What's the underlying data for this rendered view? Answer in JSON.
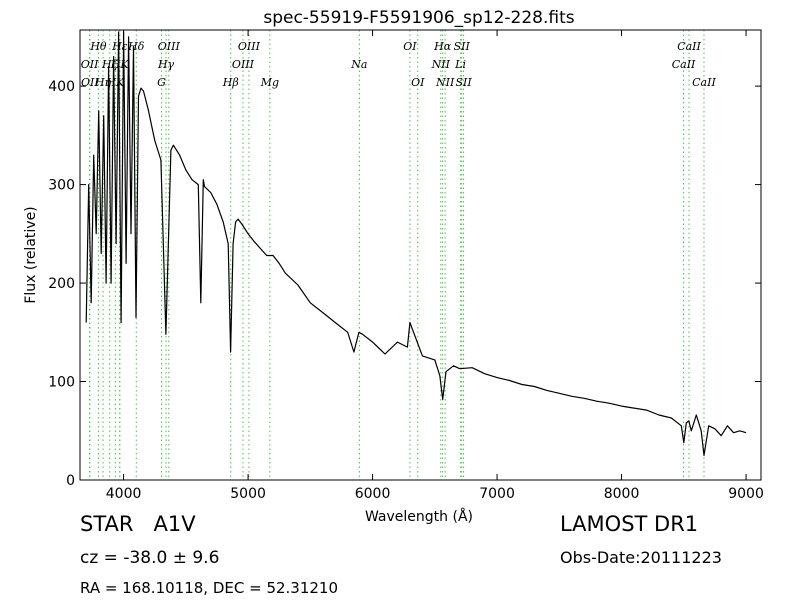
{
  "chart_data": {
    "type": "line",
    "title": "spec-55919-F5591906_sp12-228.fits",
    "xlabel": "Wavelength (Å)",
    "ylabel": "Flux (relative)",
    "xlim": [
      3650,
      9120
    ],
    "ylim": [
      0,
      457
    ],
    "xticks": [
      4000,
      5000,
      6000,
      7000,
      8000,
      9000
    ],
    "yticks": [
      0,
      100,
      200,
      300,
      400
    ],
    "grid": false,
    "series": [
      {
        "color": "#000000",
        "x": [
          3700,
          3720,
          3740,
          3760,
          3780,
          3800,
          3820,
          3840,
          3860,
          3880,
          3900,
          3920,
          3940,
          3960,
          3980,
          4000,
          4020,
          4040,
          4060,
          4080,
          4100,
          4120,
          4140,
          4160,
          4180,
          4200,
          4250,
          4300,
          4340,
          4380,
          4400,
          4450,
          4500,
          4550,
          4600,
          4620,
          4640,
          4650,
          4700,
          4750,
          4800,
          4840,
          4860,
          4880,
          4900,
          4920,
          4950,
          5000,
          5050,
          5100,
          5150,
          5200,
          5250,
          5300,
          5400,
          5500,
          5600,
          5700,
          5800,
          5850,
          5890,
          5920,
          6000,
          6100,
          6200,
          6280,
          6300,
          6400,
          6500,
          6540,
          6563,
          6590,
          6650,
          6700,
          6800,
          6900,
          7000,
          7100,
          7200,
          7300,
          7400,
          7500,
          7600,
          7700,
          7800,
          7900,
          8000,
          8100,
          8200,
          8300,
          8400,
          8480,
          8500,
          8520,
          8540,
          8560,
          8600,
          8640,
          8662,
          8700,
          8750,
          8800,
          8850,
          8900,
          8950,
          9000
        ],
        "y": [
          160,
          300,
          180,
          330,
          250,
          375,
          230,
          370,
          200,
          420,
          200,
          430,
          240,
          455,
          160,
          455,
          220,
          450,
          250,
          440,
          165,
          390,
          398,
          395,
          385,
          375,
          345,
          325,
          148,
          335,
          340,
          330,
          315,
          305,
          300,
          180,
          305,
          298,
          292,
          280,
          262,
          240,
          130,
          240,
          262,
          265,
          260,
          250,
          242,
          235,
          228,
          228,
          220,
          210,
          198,
          180,
          170,
          160,
          150,
          130,
          150,
          148,
          140,
          128,
          140,
          135,
          160,
          126,
          122,
          106,
          82,
          110,
          116,
          113,
          114,
          108,
          104,
          101,
          97,
          95,
          91,
          88,
          85,
          83,
          80,
          78,
          75,
          73,
          71,
          66,
          63,
          55,
          38,
          58,
          60,
          50,
          66,
          50,
          25,
          55,
          52,
          45,
          55,
          48,
          50,
          48
        ]
      }
    ],
    "lines": [
      {
        "label": "OII",
        "wl": 3727,
        "tier": 2
      },
      {
        "label": "OII",
        "wl": 3729,
        "tier": 3
      },
      {
        "label": "Hθ",
        "wl": 3798,
        "tier": 1
      },
      {
        "label": "Hη",
        "wl": 3835,
        "tier": 3
      },
      {
        "label": "Hζ",
        "wl": 3889,
        "tier": 2
      },
      {
        "label": "Hε",
        "wl": 3970,
        "tier": 1
      },
      {
        "label": "HK",
        "wl": 3934,
        "tier": 3
      },
      {
        "label": "HK",
        "wl": 3969,
        "tier": 2
      },
      {
        "label": "Hδ",
        "wl": 4102,
        "tier": 1
      },
      {
        "label": "G",
        "wl": 4305,
        "tier": 3
      },
      {
        "label": "Hγ",
        "wl": 4341,
        "tier": 2
      },
      {
        "label": "OIII",
        "wl": 4363,
        "tier": 1
      },
      {
        "label": "Hβ",
        "wl": 4861,
        "tier": 3
      },
      {
        "label": "OIII",
        "wl": 4959,
        "tier": 2
      },
      {
        "label": "OIII",
        "wl": 5007,
        "tier": 1
      },
      {
        "label": "Mg",
        "wl": 5175,
        "tier": 3
      },
      {
        "label": "Na",
        "wl": 5894,
        "tier": 2
      },
      {
        "label": "OI",
        "wl": 6300,
        "tier": 1
      },
      {
        "label": "OI",
        "wl": 6363,
        "tier": 3
      },
      {
        "label": "NII",
        "wl": 6548,
        "tier": 2
      },
      {
        "label": "Hα",
        "wl": 6563,
        "tier": 1
      },
      {
        "label": "NII",
        "wl": 6583,
        "tier": 3
      },
      {
        "label": "Li",
        "wl": 6707,
        "tier": 2
      },
      {
        "label": "SII",
        "wl": 6716,
        "tier": 1
      },
      {
        "label": "SII",
        "wl": 6731,
        "tier": 3
      },
      {
        "label": "CaII",
        "wl": 8498,
        "tier": 2
      },
      {
        "label": "CaII",
        "wl": 8542,
        "tier": 1
      },
      {
        "label": "CaII",
        "wl": 8662,
        "tier": 3
      }
    ],
    "line_color": "#55bb55"
  },
  "info": {
    "class_label": "STAR   A1V",
    "survey": "LAMOST DR1",
    "cz": "cz = -38.0 ± 9.6",
    "obs_date": "Obs-Date:20111223",
    "radec": "RA = 168.10118, DEC = 52.31210"
  }
}
